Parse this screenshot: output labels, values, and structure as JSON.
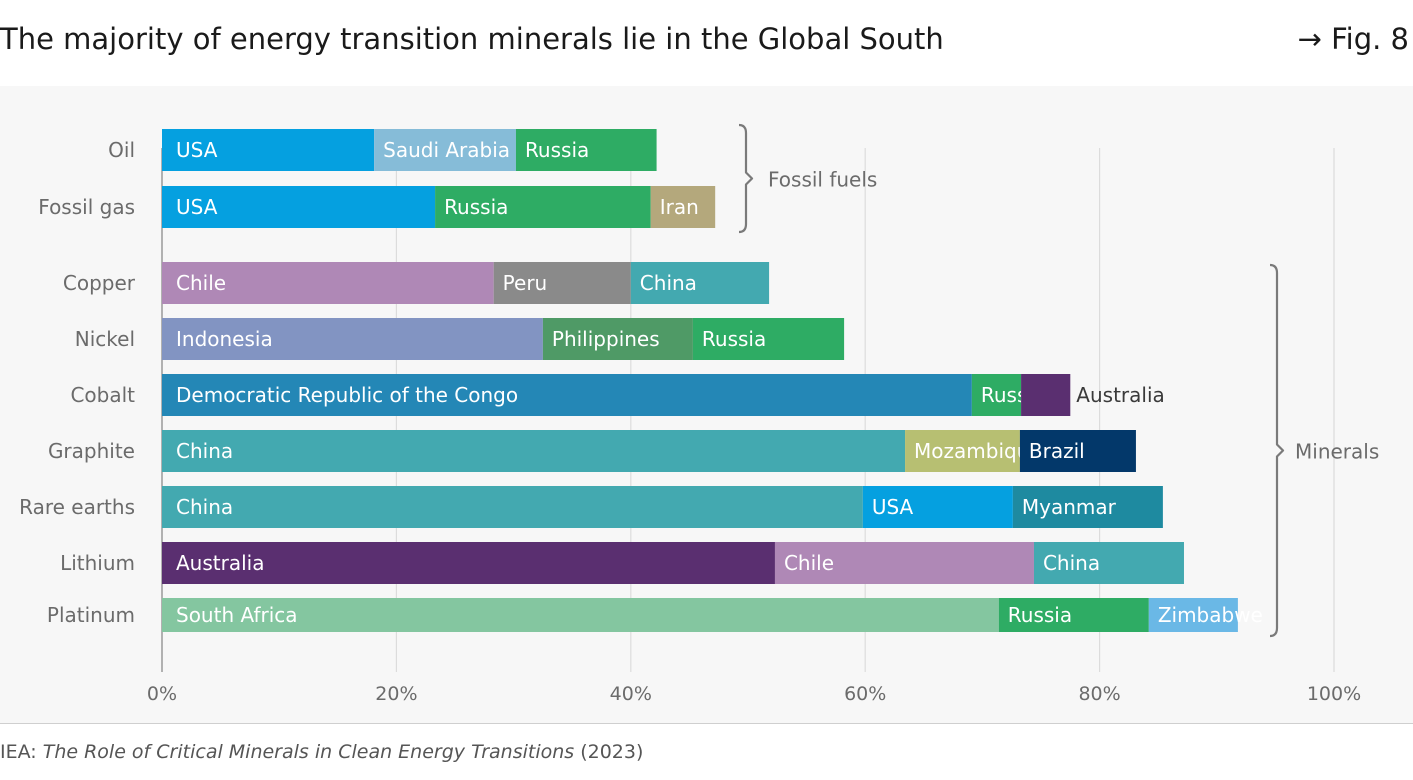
{
  "header": {
    "title": "The majority of energy transition minerals lie in the Global South",
    "fig_label": "→ Fig. 8"
  },
  "source": {
    "prefix": "IEA: ",
    "title": "The Role of Critical Minerals in Clean Energy Transitions",
    "year": " (2023)"
  },
  "colors": {
    "USA": "#05a0e0",
    "Saudi Arabia": "#86bcd8",
    "Russia": "#2eac64",
    "Iran": "#b4a87c",
    "Chile": "#af88b6",
    "Peru": "#8a8a8a",
    "China": "#43a9b0",
    "Indonesia": "#8294c2",
    "Philippines": "#4f9a66",
    "Democratic Republic of the Congo": "#2487b6",
    "Australia": "#5a2f70",
    "Mozambique": "#b7bf72",
    "Brazil": "#03386a",
    "Myanmar": "#1e8aa0",
    "South Africa": "#84c6a0",
    "Zimbabwe": "#6ab8e6"
  },
  "chart_data": {
    "type": "bar",
    "orientation": "horizontal",
    "stacked": true,
    "xlim": [
      0,
      100
    ],
    "xticks": [
      "0%",
      "20%",
      "40%",
      "60%",
      "80%",
      "100%"
    ],
    "grid": true,
    "groups": [
      {
        "label": "Fossil fuels",
        "rows": [
          "Oil",
          "Fossil gas"
        ]
      },
      {
        "label": "Minerals",
        "rows": [
          "Copper",
          "Nickel",
          "Cobalt",
          "Graphite",
          "Rare earths",
          "Lithium",
          "Platinum"
        ]
      }
    ],
    "categories": [
      "Oil",
      "Fossil gas",
      "Copper",
      "Nickel",
      "Cobalt",
      "Graphite",
      "Rare earths",
      "Lithium",
      "Platinum"
    ],
    "rows": [
      {
        "category": "Oil",
        "segments": [
          {
            "country": "USA",
            "value": 18.1
          },
          {
            "country": "Saudi Arabia",
            "value": 12.1
          },
          {
            "country": "Russia",
            "value": 12.0
          }
        ]
      },
      {
        "category": "Fossil gas",
        "segments": [
          {
            "country": "USA",
            "value": 23.3
          },
          {
            "country": "Russia",
            "value": 18.4
          },
          {
            "country": "Iran",
            "value": 5.5
          }
        ]
      },
      {
        "category": "Copper",
        "segments": [
          {
            "country": "Chile",
            "value": 28.3
          },
          {
            "country": "Peru",
            "value": 11.7
          },
          {
            "country": "China",
            "value": 11.8
          }
        ]
      },
      {
        "category": "Nickel",
        "segments": [
          {
            "country": "Indonesia",
            "value": 32.5
          },
          {
            "country": "Philippines",
            "value": 12.8
          },
          {
            "country": "Russia",
            "value": 12.9
          }
        ]
      },
      {
        "category": "Cobalt",
        "segments": [
          {
            "country": "Democratic Republic of the Congo",
            "value": 69.1
          },
          {
            "country": "Russia",
            "value": 4.2
          },
          {
            "country": "Australia",
            "value": 4.2
          }
        ]
      },
      {
        "category": "Graphite",
        "segments": [
          {
            "country": "China",
            "value": 63.4
          },
          {
            "country": "Mozambique",
            "value": 9.8
          },
          {
            "country": "Brazil",
            "value": 9.9
          }
        ]
      },
      {
        "category": "Rare earths",
        "segments": [
          {
            "country": "China",
            "value": 59.8
          },
          {
            "country": "USA",
            "value": 12.8
          },
          {
            "country": "Myanmar",
            "value": 12.8
          }
        ]
      },
      {
        "category": "Lithium",
        "segments": [
          {
            "country": "Australia",
            "value": 52.3
          },
          {
            "country": "Chile",
            "value": 22.1
          },
          {
            "country": "China",
            "value": 12.8
          }
        ]
      },
      {
        "category": "Platinum",
        "segments": [
          {
            "country": "South Africa",
            "value": 71.4
          },
          {
            "country": "Russia",
            "value": 12.8
          },
          {
            "country": "Zimbabwe",
            "value": 7.6
          }
        ]
      }
    ]
  }
}
